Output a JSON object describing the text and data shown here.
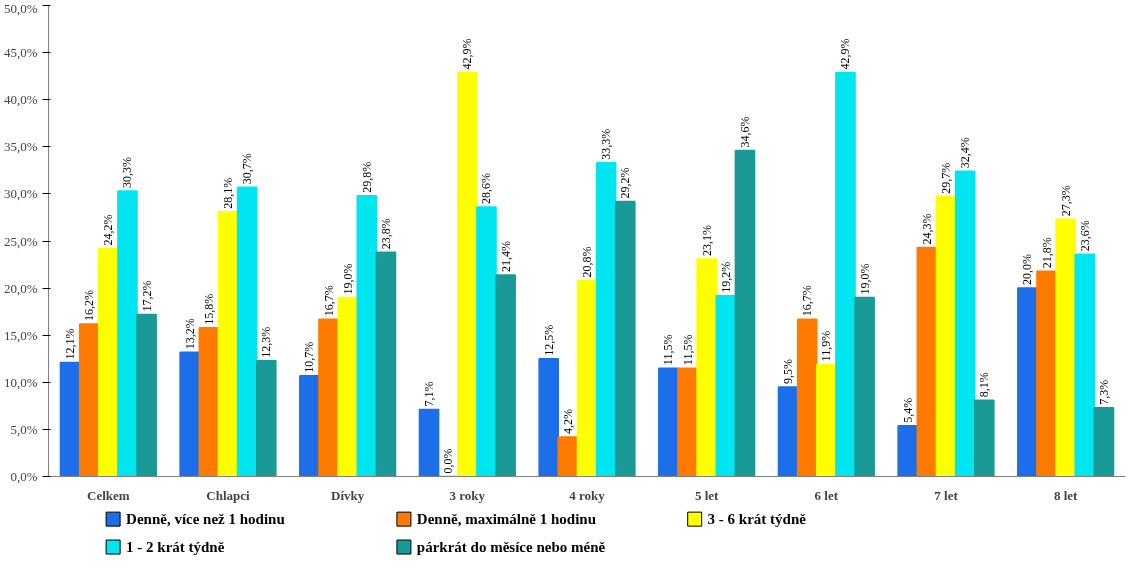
{
  "chart_data": {
    "type": "bar",
    "categories": [
      "Celkem",
      "Chlapci",
      "Dívky",
      "3 roky",
      "4 roky",
      "5 let",
      "6 let",
      "7 let",
      "8 let"
    ],
    "ylim": [
      0,
      50
    ],
    "yticks": [
      {
        "value": 0,
        "label": "0,0%"
      },
      {
        "value": 5,
        "label": "5,0%"
      },
      {
        "value": 10,
        "label": "10,0%"
      },
      {
        "value": 15,
        "label": "15,0%"
      },
      {
        "value": 20,
        "label": "20,0%"
      },
      {
        "value": 25,
        "label": "25,0%"
      },
      {
        "value": 30,
        "label": "30,0%"
      },
      {
        "value": 35,
        "label": "35,0%"
      },
      {
        "value": 40,
        "label": "40,0%"
      },
      {
        "value": 45,
        "label": "45,0%"
      },
      {
        "value": 50,
        "label": "50,0%"
      }
    ],
    "grid": false,
    "legend": "bottom",
    "series": [
      {
        "name": "Denně, více než 1 hodinu",
        "color": "#1c6fe8",
        "values": [
          12.1,
          13.2,
          10.7,
          7.1,
          12.5,
          11.5,
          9.5,
          5.4,
          20.0
        ],
        "value_labels": [
          "12,1%",
          "13,2%",
          "10,7%",
          "7,1%",
          "12,5%",
          "11,5%",
          "9,5%",
          "5,4%",
          "20,0%"
        ]
      },
      {
        "name": "Denně, maximálně 1 hodinu",
        "color": "#ff7a00",
        "values": [
          16.2,
          15.8,
          16.7,
          0.0,
          4.2,
          11.5,
          16.7,
          24.3,
          21.8
        ],
        "value_labels": [
          "16,2%",
          "15,8%",
          "16,7%",
          "0,0%",
          "4,2%",
          "11,5%",
          "16,7%",
          "24,3%",
          "21,8%"
        ]
      },
      {
        "name": "3 - 6 krát týdně",
        "color": "#ffff00",
        "values": [
          24.2,
          28.1,
          19.0,
          42.9,
          20.8,
          23.1,
          11.9,
          29.7,
          27.3
        ],
        "value_labels": [
          "24,2%",
          "28,1%",
          "19,0%",
          "42,9%",
          "20,8%",
          "23,1%",
          "11,9%",
          "29,7%",
          "27,3%"
        ]
      },
      {
        "name": "1 - 2 krát týdně",
        "color": "#00e5f0",
        "values": [
          30.3,
          30.7,
          29.8,
          28.6,
          33.3,
          19.2,
          42.9,
          32.4,
          23.6
        ],
        "value_labels": [
          "30,3%",
          "30,7%",
          "29,8%",
          "28,6%",
          "33,3%",
          "19,2%",
          "42,9%",
          "32,4%",
          "23,6%"
        ]
      },
      {
        "name": "párkrát do měsíce nebo méně",
        "color": "#1a9a96",
        "values": [
          17.2,
          12.3,
          23.8,
          21.4,
          29.2,
          34.6,
          19.0,
          8.1,
          7.3
        ],
        "value_labels": [
          "17,2%",
          "12,3%",
          "23,8%",
          "21,4%",
          "29,2%",
          "34,6%",
          "19,0%",
          "8,1%",
          "7,3%"
        ]
      }
    ]
  }
}
